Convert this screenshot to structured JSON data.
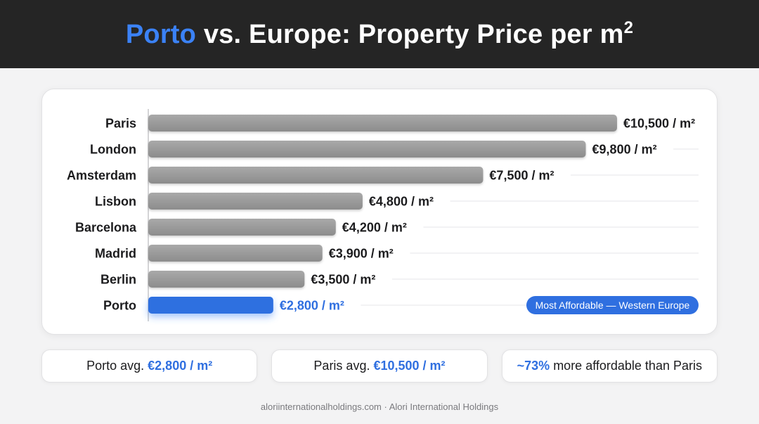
{
  "header": {
    "title_highlight": "Porto",
    "title_rest": " vs. Europe: Property Price per m",
    "title_sup": "2"
  },
  "chart_data": {
    "type": "bar",
    "orientation": "horizontal",
    "categories": [
      "Paris",
      "London",
      "Amsterdam",
      "Lisbon",
      "Barcelona",
      "Madrid",
      "Berlin",
      "Porto"
    ],
    "values": [
      10500,
      9800,
      7500,
      4800,
      4200,
      3900,
      3500,
      2800
    ],
    "value_labels": [
      "€10,500 / m²",
      "€9,800 / m²",
      "€7,500 / m²",
      "€4,800 / m²",
      "€4,200 / m²",
      "€3,900 / m²",
      "€3,500 / m²",
      "€2,800 / m²"
    ],
    "highlight_category": "Porto",
    "highlight_badge": "Most Affordable — Western Europe",
    "xlim": [
      0,
      10500
    ],
    "grid": true,
    "colors": {
      "bar": "#9b9b9b",
      "highlight": "#2f6fe0"
    }
  },
  "stats": {
    "porto_label": "Porto avg.",
    "porto_value": "€2,800 / m²",
    "paris_label": "Paris avg.",
    "paris_value": "€10,500 / m²",
    "affordable_pct": "~73%",
    "affordable_text": "more affordable than Paris"
  },
  "footer": {
    "text": "aloriinternationalholdings.com · Alori International Holdings"
  }
}
